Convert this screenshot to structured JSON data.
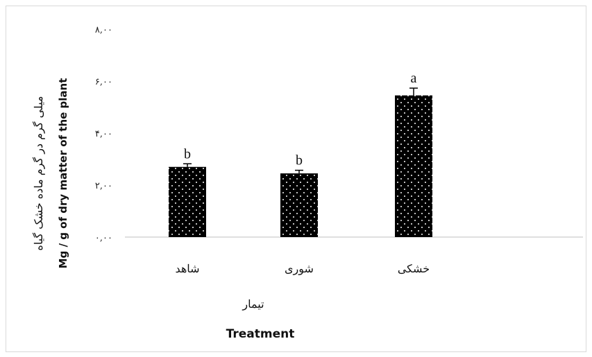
{
  "chart_data": {
    "type": "bar",
    "categories": [
      "شاهد",
      "شوری",
      "خشکی"
    ],
    "values": [
      2.7,
      2.45,
      5.45
    ],
    "errors": [
      0.12,
      0.12,
      0.28
    ],
    "significance": [
      "b",
      "b",
      "a"
    ],
    "yticks": [
      "۰,۰۰",
      "۲,۰۰",
      "۴,۰۰",
      "۶,۰۰",
      "۸,۰۰"
    ],
    "ylim": [
      0,
      8
    ],
    "ylabel": "میلی گرم در گرم ماده خشک گیاه",
    "ylabel_en": "Mg / g of dry matter of the plant",
    "xlabel": "تیمار",
    "xlabel_en": "Treatment",
    "grid": false,
    "bar_color": "#000000",
    "dot_color": "#ffffff"
  }
}
